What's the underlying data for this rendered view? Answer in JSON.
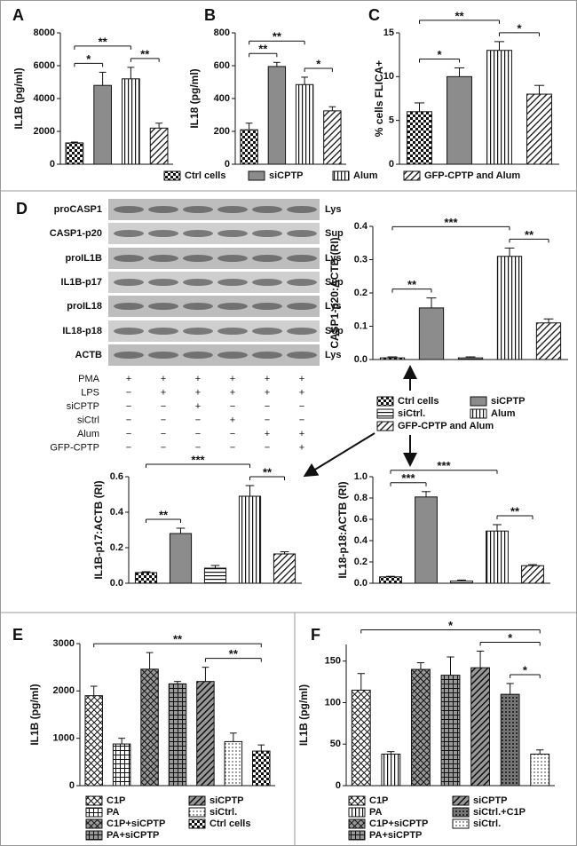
{
  "blot": {
    "panel": "D",
    "rows": [
      {
        "label": "proCASP1",
        "fraction": "Lys"
      },
      {
        "label": "CASP1-p20",
        "fraction": "Sup"
      },
      {
        "label": "proIL1B",
        "fraction": "Lys"
      },
      {
        "label": "IL1B-p17",
        "fraction": "Sup"
      },
      {
        "label": "proIL18",
        "fraction": "Lys"
      },
      {
        "label": "IL18-p18",
        "fraction": "Sup"
      },
      {
        "label": "ACTB",
        "fraction": "Lys"
      }
    ],
    "conditions": [
      {
        "label": "PMA",
        "lanes": [
          "+",
          "+",
          "+",
          "+",
          "+",
          "+"
        ]
      },
      {
        "label": "LPS",
        "lanes": [
          "−",
          "+",
          "+",
          "+",
          "+",
          "+"
        ]
      },
      {
        "label": "siCPTP",
        "lanes": [
          "−",
          "−",
          "+",
          "−",
          "−",
          "−"
        ]
      },
      {
        "label": "siCtrl",
        "lanes": [
          "−",
          "−",
          "−",
          "+",
          "−",
          "−"
        ]
      },
      {
        "label": "Alum",
        "lanes": [
          "−",
          "−",
          "−",
          "−",
          "+",
          "+"
        ]
      },
      {
        "label": "GFP-CPTP",
        "lanes": [
          "−",
          "−",
          "−",
          "−",
          "−",
          "+"
        ]
      }
    ]
  },
  "legends": [
    [
      {
        "name": "Ctrl cells",
        "pattern": "checker"
      },
      {
        "name": "siCPTP",
        "pattern": "solid"
      },
      {
        "name": "Alum",
        "pattern": "vstripe"
      },
      {
        "name": "GFP-CPTP and Alum",
        "pattern": "diag"
      }
    ],
    [
      {
        "name": "Ctrl cells",
        "pattern": "checker"
      },
      {
        "name": "siCPTP",
        "pattern": "solid"
      },
      {
        "name": "siCtrl.",
        "pattern": "hstripe"
      },
      {
        "name": "Alum",
        "pattern": "vstripe"
      },
      {
        "name": "GFP-CPTP and Alum",
        "pattern": "diag"
      }
    ],
    [
      {
        "name": "C1P",
        "pattern": "cross"
      },
      {
        "name": "PA",
        "pattern": "grid"
      },
      {
        "name": "C1P+siCPTP",
        "pattern": "cross-dark"
      },
      {
        "name": "PA+siCPTP",
        "pattern": "grid-dark"
      },
      {
        "name": "siCPTP",
        "pattern": "diag-dark"
      },
      {
        "name": "siCtrl.",
        "pattern": "dots"
      },
      {
        "name": "Ctrl cells",
        "pattern": "checker"
      }
    ],
    [
      {
        "name": "C1P",
        "pattern": "cross"
      },
      {
        "name": "PA",
        "pattern": "vstripe"
      },
      {
        "name": "C1P+siCPTP",
        "pattern": "cross-dark"
      },
      {
        "name": "PA+siCPTP",
        "pattern": "grid-dark"
      },
      {
        "name": "siCPTP",
        "pattern": "diag-dark"
      },
      {
        "name": "siCtrl.+C1P",
        "pattern": "dots-dark"
      },
      {
        "name": "siCtrl.",
        "pattern": "dots"
      }
    ]
  ],
  "chart_data": [
    {
      "type": "bar",
      "panel": "A",
      "ylabel": "IL1B (pg/ml)",
      "values": [
        1300,
        4800,
        5200,
        2200
      ],
      "errors": [
        50,
        800,
        700,
        300
      ],
      "patterns": [
        "checker",
        "solid",
        "vstripe",
        "diag"
      ],
      "ylim": [
        0,
        8000
      ],
      "yticks": [
        0,
        2000,
        4000,
        6000,
        8000
      ],
      "brackets": [
        {
          "label": "*",
          "groups": [
            0,
            1
          ]
        },
        {
          "label": "**",
          "groups": [
            2,
            3
          ]
        },
        {
          "label": "**",
          "groups": [
            0,
            2
          ]
        }
      ]
    },
    {
      "type": "bar",
      "panel": "B",
      "ylabel": "IL18 (pg/ml)",
      "values": [
        210,
        595,
        485,
        325
      ],
      "errors": [
        40,
        25,
        45,
        25
      ],
      "patterns": [
        "checker",
        "solid",
        "vstripe",
        "diag"
      ],
      "ylim": [
        0,
        800
      ],
      "yticks": [
        0,
        200,
        400,
        600,
        800
      ],
      "brackets": [
        {
          "label": "**",
          "groups": [
            0,
            1
          ]
        },
        {
          "label": "*",
          "groups": [
            2,
            3
          ]
        },
        {
          "label": "**",
          "groups": [
            0,
            2
          ]
        }
      ]
    },
    {
      "type": "bar",
      "panel": "C",
      "ylabel": "% cells FLICA+",
      "values": [
        6,
        10,
        13,
        8
      ],
      "errors": [
        1,
        1,
        1,
        1
      ],
      "patterns": [
        "checker",
        "solid",
        "vstripe",
        "diag"
      ],
      "ylim": [
        0,
        15
      ],
      "yticks": [
        0,
        5,
        10,
        15
      ],
      "brackets": [
        {
          "label": "*",
          "groups": [
            0,
            1
          ]
        },
        {
          "label": "*",
          "groups": [
            2,
            3
          ]
        },
        {
          "label": "**",
          "groups": [
            0,
            2
          ]
        }
      ]
    },
    {
      "type": "bar",
      "ylabel": "CASP1-p20:ACTB (RI)",
      "values": [
        0.005,
        0.155,
        0.005,
        0.31,
        0.11
      ],
      "errors": [
        0.003,
        0.03,
        0.003,
        0.025,
        0.012
      ],
      "patterns": [
        "checker",
        "solid",
        "hstripe",
        "vstripe",
        "diag"
      ],
      "ylim": [
        0,
        0.4
      ],
      "yticks": [
        {
          "value": 0,
          "label": "0.0"
        },
        0.1,
        0.2,
        0.3,
        0.4
      ],
      "brackets": [
        {
          "label": "**",
          "groups": [
            0,
            1
          ]
        },
        {
          "label": "**",
          "groups": [
            3,
            4
          ]
        },
        {
          "label": "***",
          "groups": [
            0,
            3
          ]
        }
      ]
    },
    {
      "type": "bar",
      "ylabel": "IL1B-p17:ACTB (RI)",
      "values": [
        0.06,
        0.28,
        0.085,
        0.49,
        0.165
      ],
      "errors": [
        0.005,
        0.03,
        0.015,
        0.06,
        0.012
      ],
      "patterns": [
        "checker",
        "solid",
        "hstripe",
        "vstripe",
        "diag"
      ],
      "ylim": [
        0,
        0.6
      ],
      "yticks": [
        {
          "value": 0,
          "label": "0.0"
        },
        0.2,
        0.4,
        0.6
      ],
      "brackets": [
        {
          "label": "**",
          "groups": [
            0,
            1
          ]
        },
        {
          "label": "**",
          "groups": [
            3,
            4
          ]
        },
        {
          "label": "***",
          "groups": [
            0,
            3
          ]
        }
      ]
    },
    {
      "type": "bar",
      "ylabel": "IL18-p18:ACTB (RI)",
      "values": [
        0.06,
        0.81,
        0.02,
        0.49,
        0.165
      ],
      "errors": [
        0.005,
        0.05,
        0.01,
        0.06,
        0.01
      ],
      "patterns": [
        "checker",
        "solid",
        "hstripe",
        "vstripe",
        "diag"
      ],
      "ylim": [
        0,
        1
      ],
      "yticks": [
        {
          "value": 0,
          "label": "0.0"
        },
        0.2,
        0.4,
        0.6,
        0.8,
        {
          "value": 1,
          "label": "1.0"
        }
      ],
      "brackets": [
        {
          "label": "***",
          "groups": [
            0,
            1
          ]
        },
        {
          "label": "**",
          "groups": [
            3,
            4
          ]
        },
        {
          "label": "***",
          "groups": [
            0,
            3
          ]
        }
      ]
    },
    {
      "type": "bar",
      "panel": "E",
      "ylabel": "IL1B (pg/ml)",
      "values": [
        1900,
        880,
        2460,
        2150,
        2200,
        930,
        730
      ],
      "errors": [
        200,
        120,
        350,
        50,
        300,
        180,
        130
      ],
      "patterns": [
        "cross",
        "grid",
        "cross-dark",
        "grid-dark",
        "diag-dark",
        "dots",
        "checker"
      ],
      "ylim": [
        0,
        3000
      ],
      "yticks": [
        0,
        1000,
        2000,
        3000
      ],
      "brackets": [
        {
          "label": "**",
          "groups": [
            4,
            6
          ]
        },
        {
          "label": "**",
          "groups": [
            0,
            6
          ]
        }
      ]
    },
    {
      "type": "bar",
      "panel": "F",
      "ylabel": "IL1B (pg/ml)",
      "values": [
        115,
        38,
        140,
        133,
        142,
        110,
        38
      ],
      "errors": [
        20,
        3,
        8,
        22,
        20,
        13,
        5
      ],
      "patterns": [
        "cross",
        "vstripe",
        "cross-dark",
        "grid-dark",
        "diag-dark",
        "dots-dark",
        "dots"
      ],
      "ylim": [
        0,
        170
      ],
      "yticks": [
        0,
        50,
        100,
        150
      ],
      "brackets": [
        {
          "label": "*",
          "groups": [
            5,
            6
          ]
        },
        {
          "label": "*",
          "groups": [
            4,
            6
          ]
        },
        {
          "label": "*",
          "groups": [
            0,
            6
          ]
        }
      ]
    }
  ]
}
